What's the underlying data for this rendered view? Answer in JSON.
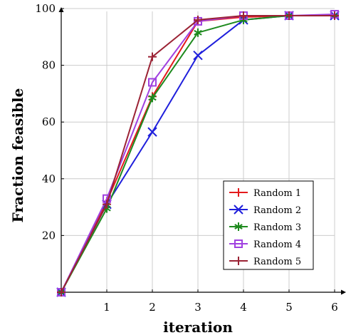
{
  "chart_data": {
    "type": "line",
    "xlabel": "iteration",
    "ylabel": "Fraction feasible",
    "title": "",
    "x": [
      0,
      1,
      2,
      3,
      4,
      5,
      6
    ],
    "xticks": [
      1,
      2,
      3,
      4,
      5,
      6
    ],
    "yticks": [
      20,
      40,
      60,
      80,
      100
    ],
    "xlim": [
      0,
      6
    ],
    "ylim": [
      0,
      100
    ],
    "grid": true,
    "legend_position": "bottom-right",
    "series": [
      {
        "name": "Random 1",
        "color": "#e41a1c",
        "marker": "plus",
        "values": [
          0,
          32,
          69,
          95.5,
          97,
          97.5,
          97.5
        ]
      },
      {
        "name": "Random 2",
        "color": "#1f1fdc",
        "marker": "x",
        "values": [
          0,
          31,
          56.5,
          83.5,
          96,
          97.5,
          97.5
        ]
      },
      {
        "name": "Random 3",
        "color": "#1e8a1e",
        "marker": "asterisk",
        "values": [
          0,
          29.5,
          68.5,
          91.5,
          96,
          97.5,
          97.5
        ]
      },
      {
        "name": "Random 4",
        "color": "#a040e0",
        "marker": "square",
        "values": [
          0,
          33,
          74,
          95.5,
          97.5,
          97.5,
          98
        ]
      },
      {
        "name": "Random 5",
        "color": "#9b2335",
        "marker": "plus",
        "values": [
          0,
          31,
          83,
          96,
          97.5,
          97.5,
          97.5
        ]
      }
    ]
  }
}
